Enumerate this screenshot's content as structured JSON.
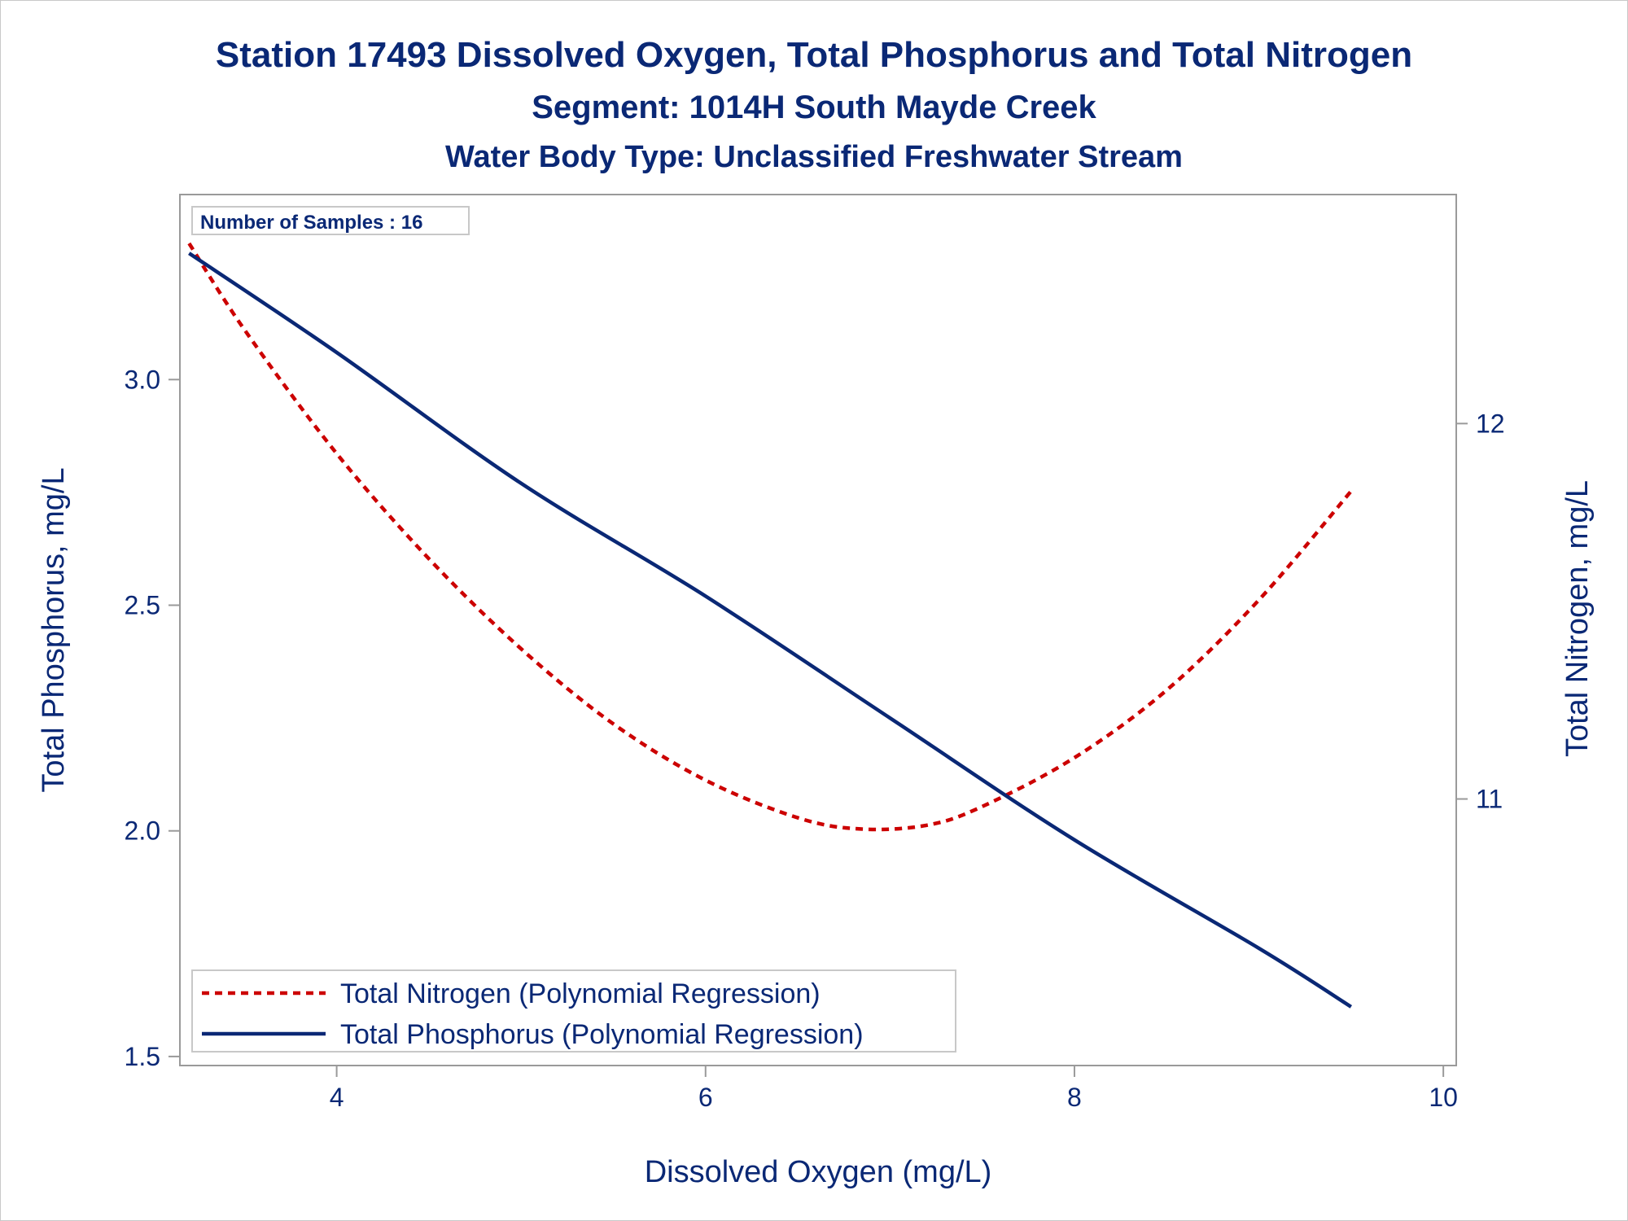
{
  "chart_data": {
    "type": "line",
    "title": "Station 17493  Dissolved Oxygen, Total Phosphorus and Total Nitrogen",
    "subtitle": "Segment: 1014H  South Mayde Creek",
    "subtitle2": "Water Body Type: Unclassified Freshwater Stream",
    "xlabel": "Dissolved Oxygen (mg/L)",
    "ylabel": "Total Phosphorus, mg/L",
    "y2label": "Total Nitrogen, mg/L",
    "xlim": [
      3.15,
      10.07
    ],
    "ylim": [
      1.48,
      3.41
    ],
    "y2lim": [
      10.29,
      12.61
    ],
    "xticks": [
      "4",
      "6",
      "8",
      "10"
    ],
    "yticks": [
      "1.5",
      "2.0",
      "2.5",
      "3.0"
    ],
    "y2ticks": [
      "11",
      "12"
    ],
    "annotation": "Number of Samples : 16",
    "legend_position": "bottom-left",
    "grid": false,
    "series": [
      {
        "name": "Total Nitrogen (Polynomial Regression)",
        "axis": "right",
        "color": "#cc0000",
        "style": "dashed",
        "x": [
          3.2,
          3.5,
          4.0,
          4.5,
          5.0,
          5.5,
          6.0,
          6.5,
          6.84,
          7.2,
          7.5,
          8.0,
          8.5,
          9.0,
          9.5
        ],
        "values": [
          12.48,
          12.25,
          11.92,
          11.64,
          11.4,
          11.2,
          11.05,
          10.95,
          10.92,
          10.93,
          10.98,
          11.11,
          11.29,
          11.53,
          11.82
        ]
      },
      {
        "name": "Total Phosphorus (Polynomial Regression)",
        "axis": "left",
        "color": "#0a2875",
        "style": "solid",
        "x": [
          3.2,
          4.0,
          5.0,
          6.0,
          7.0,
          8.0,
          9.0,
          9.5
        ],
        "values": [
          3.28,
          3.06,
          2.77,
          2.52,
          2.25,
          1.98,
          1.74,
          1.61
        ]
      }
    ]
  }
}
